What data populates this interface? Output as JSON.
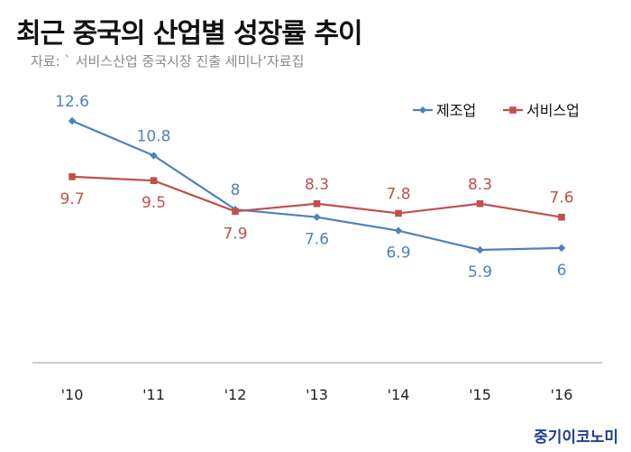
{
  "header": {
    "title": "최근 중국의 산업별 성장률 추이",
    "source": "자료: ` 서비스산업 중국시장 진출 세미나’자료집"
  },
  "brand": "중기이코노미",
  "colors": {
    "manufacturing": "#4f81bd",
    "services": "#c0504d",
    "axis": "#9a9a9a",
    "brand": "#1e3f8f"
  },
  "chart_data": {
    "type": "line",
    "title": "최근 중국의 산업별 성장률 추이",
    "categories": [
      "'10",
      "'11",
      "'12",
      "'13",
      "'14",
      "'15",
      "'16"
    ],
    "ylim": [
      0,
      15
    ],
    "grid": false,
    "legend_position": "top-right",
    "series": [
      {
        "name": "제조업",
        "values": [
          12.6,
          10.8,
          8,
          7.6,
          6.9,
          5.9,
          6
        ],
        "labels": [
          "12.6",
          "10.8",
          "8",
          "7.6",
          "6.9",
          "5.9",
          "6"
        ],
        "color": "#4f81bd",
        "marker": "diamond"
      },
      {
        "name": "서비스업",
        "values": [
          9.7,
          9.5,
          7.9,
          8.3,
          7.8,
          8.3,
          7.6
        ],
        "labels": [
          "9.7",
          "9.5",
          "7.9",
          "8.3",
          "7.8",
          "8.3",
          "7.6"
        ],
        "color": "#c0504d",
        "marker": "square"
      }
    ]
  }
}
